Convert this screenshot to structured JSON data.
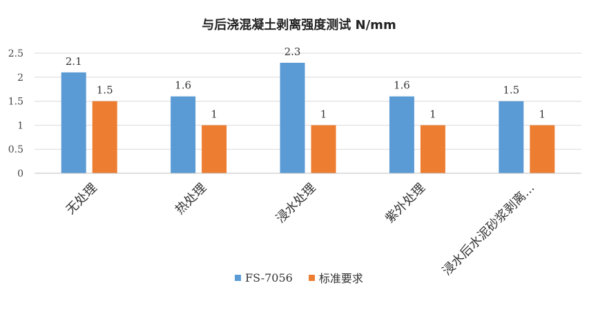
{
  "chart_data": {
    "type": "bar",
    "title": "与后浇混凝土剥离强度测试 N/mm",
    "xlabel": "",
    "ylabel": "",
    "ylim": [
      0,
      2.5
    ],
    "yticks": [
      "0",
      "0.5",
      "1",
      "1.5",
      "2",
      "2.5"
    ],
    "yticks_values": [
      0,
      0.5,
      1,
      1.5,
      2,
      2.5
    ],
    "categories": [
      "无处理",
      "热处理",
      "浸水处理",
      "紫外处理",
      "浸水后水泥砂浆剥离..."
    ],
    "series": [
      {
        "name": "FS-7056",
        "color": "#5b9bd5",
        "values": [
          2.1,
          1.6,
          2.3,
          1.6,
          1.5
        ],
        "labels": [
          "2.1",
          "1.6",
          "2.3",
          "1.6",
          "1.5"
        ]
      },
      {
        "name": "标准要求",
        "color": "#ed7d31",
        "values": [
          1.5,
          1,
          1,
          1,
          1
        ],
        "labels": [
          "1.5",
          "1",
          "1",
          "1",
          "1"
        ]
      }
    ],
    "grid": true,
    "legend_position": "bottom"
  }
}
